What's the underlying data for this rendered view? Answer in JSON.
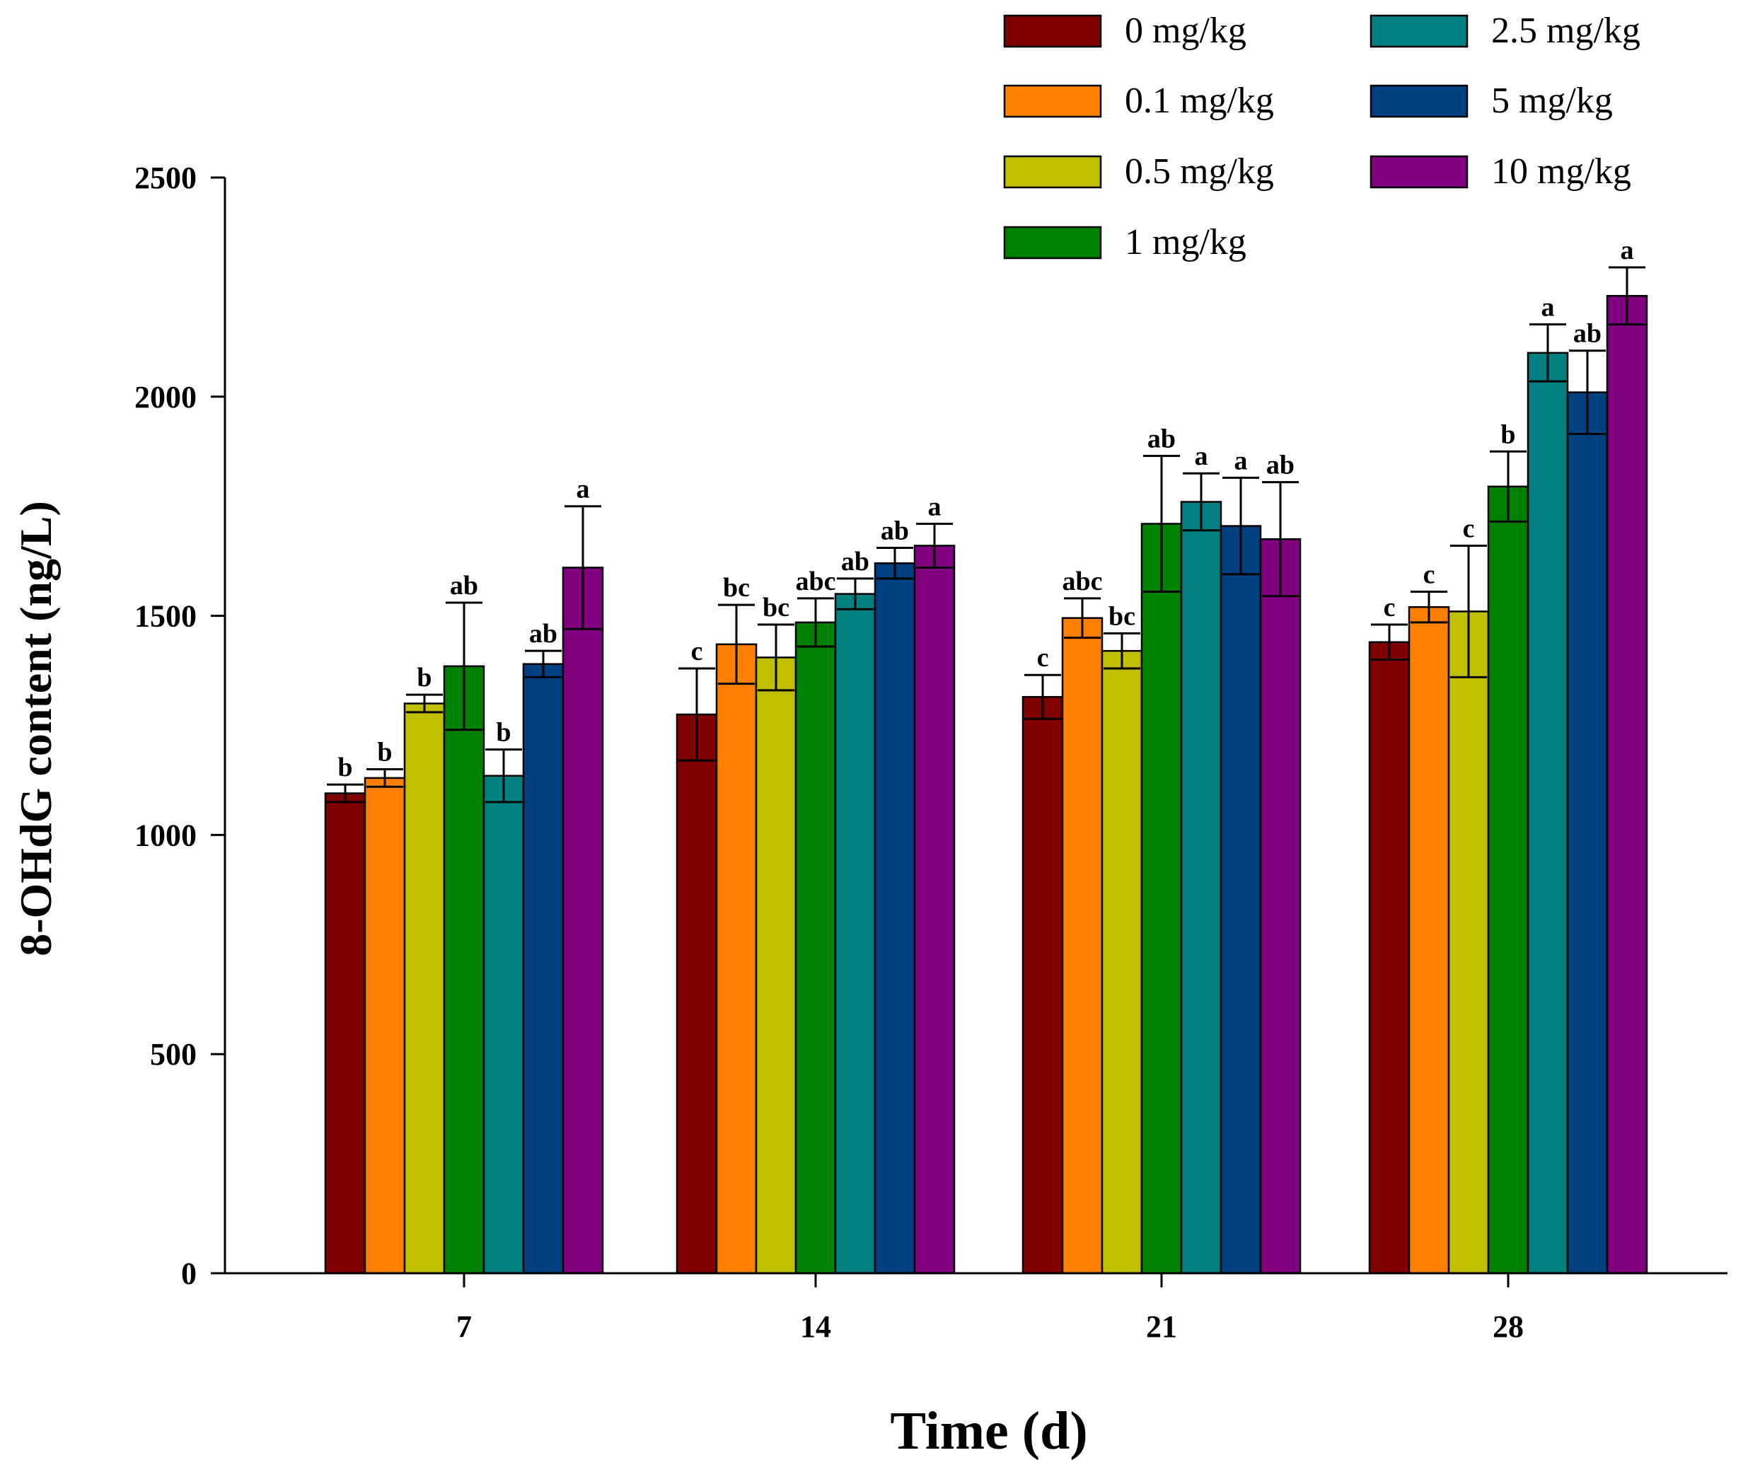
{
  "chart_data": {
    "type": "bar",
    "title": "",
    "xlabel": "Time (d)",
    "ylabel": "8-OHdG content (ng/L)",
    "ylim": [
      0,
      2500
    ],
    "yticks": [
      0,
      500,
      1000,
      1500,
      2000,
      2500
    ],
    "categories": [
      "7",
      "14",
      "21",
      "28"
    ],
    "legend_position": "top-right",
    "series": [
      {
        "name": "0 mg/kg",
        "color": "#800000",
        "values": [
          1095,
          1275,
          1315,
          1440
        ],
        "errors": [
          20,
          105,
          50,
          40
        ],
        "labels": [
          "b",
          "c",
          "c",
          "c"
        ]
      },
      {
        "name": "0.1 mg/kg",
        "color": "#ff8000",
        "values": [
          1130,
          1435,
          1495,
          1520
        ],
        "errors": [
          20,
          90,
          45,
          35
        ],
        "labels": [
          "b",
          "bc",
          "abc",
          "c"
        ]
      },
      {
        "name": "0.5 mg/kg",
        "color": "#c0c000",
        "values": [
          1300,
          1405,
          1420,
          1510
        ],
        "errors": [
          20,
          75,
          40,
          150
        ],
        "labels": [
          "b",
          "bc",
          "bc",
          "c"
        ]
      },
      {
        "name": "1 mg/kg",
        "color": "#008000",
        "values": [
          1385,
          1485,
          1710,
          1795
        ],
        "errors": [
          145,
          55,
          155,
          80
        ],
        "labels": [
          "ab",
          "abc",
          "ab",
          "b"
        ]
      },
      {
        "name": "2.5 mg/kg",
        "color": "#008080",
        "values": [
          1135,
          1550,
          1760,
          2100
        ],
        "errors": [
          60,
          35,
          65,
          65
        ],
        "labels": [
          "b",
          "ab",
          "a",
          "a"
        ]
      },
      {
        "name": "5 mg/kg",
        "color": "#004080",
        "values": [
          1390,
          1620,
          1705,
          2010
        ],
        "errors": [
          30,
          35,
          110,
          95
        ],
        "labels": [
          "ab",
          "ab",
          "a",
          "ab"
        ]
      },
      {
        "name": "10 mg/kg",
        "color": "#800080",
        "values": [
          1610,
          1660,
          1675,
          2230
        ],
        "errors": [
          140,
          50,
          130,
          65
        ],
        "labels": [
          "a",
          "a",
          "ab",
          "a"
        ]
      }
    ]
  }
}
